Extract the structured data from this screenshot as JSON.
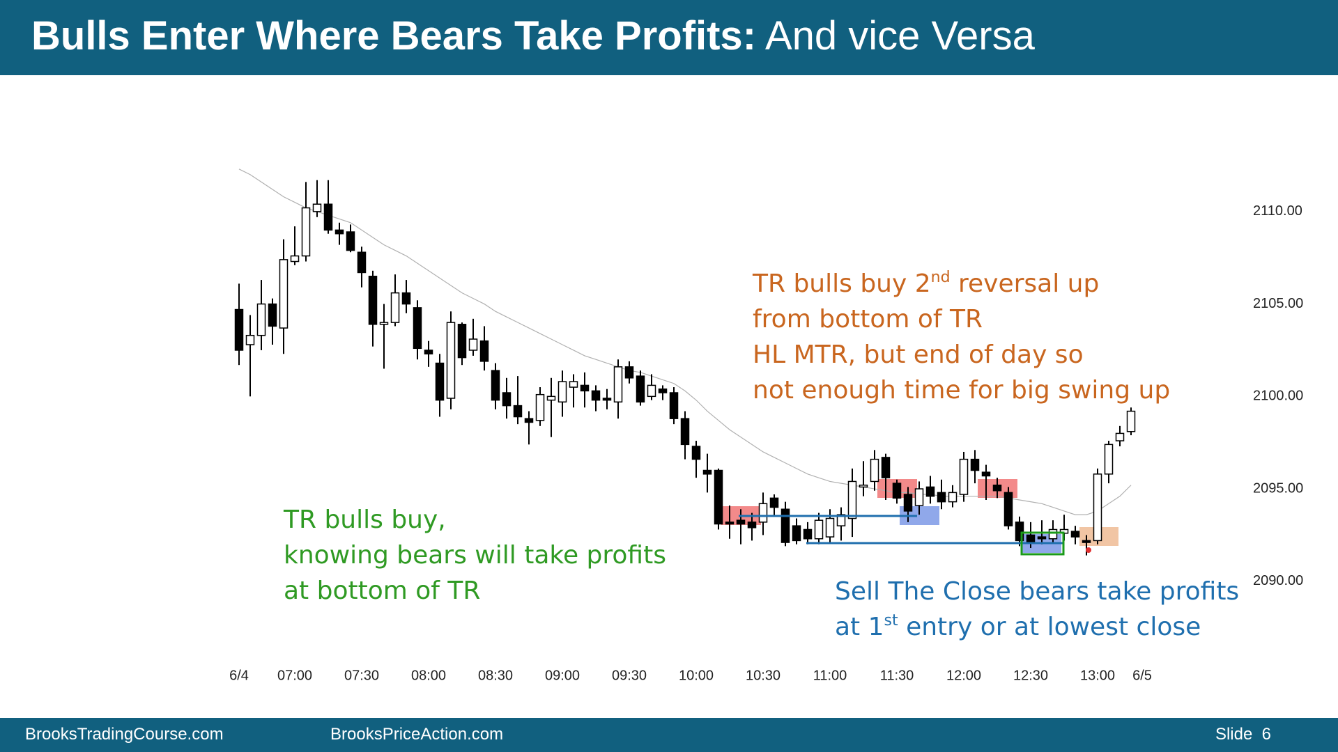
{
  "header": {
    "title_bold": "Bulls Enter Where Bears Take Profits:",
    "title_rest": "And vice Versa"
  },
  "footer": {
    "left": "BrooksTradingCourse.com",
    "center": "BrooksPriceAction.com",
    "slide": "Slide  6"
  },
  "chart_data": {
    "type": "candlestick",
    "categories": [
      "6/4",
      null,
      null,
      null,
      null,
      "07:00",
      null,
      null,
      null,
      null,
      null,
      "07:30",
      null,
      null,
      null,
      null,
      null,
      "08:00",
      null,
      null,
      null,
      null,
      null,
      "08:30",
      null,
      null,
      null,
      null,
      null,
      "09:00",
      null,
      null,
      null,
      null,
      null,
      "09:30",
      null,
      null,
      null,
      null,
      null,
      "10:00",
      null,
      null,
      null,
      null,
      null,
      "10:30",
      null,
      null,
      null,
      null,
      null,
      "11:00",
      null,
      null,
      null,
      null,
      null,
      "11:30",
      null,
      null,
      null,
      null,
      null,
      "12:00",
      null,
      null,
      null,
      null,
      null,
      "12:30",
      null,
      null,
      null,
      null,
      null,
      "13:00",
      null,
      null,
      null,
      "6/5"
    ],
    "open": [
      2104.7,
      2102.8,
      2103.3,
      2105.0,
      2103.7,
      2107.3,
      2107.6,
      2110.0,
      2110.4,
      2109.0,
      2108.9,
      2107.8,
      2106.5,
      2103.9,
      2104.0,
      2105.6,
      2104.8,
      2102.5,
      2101.8,
      2099.9,
      2103.9,
      2102.5,
      2103.0,
      2101.4,
      2100.2,
      2099.5,
      2098.8,
      2098.7,
      2099.8,
      2099.7,
      2100.5,
      2100.6,
      2100.3,
      2099.9,
      2099.7,
      2101.6,
      2101.1,
      2100.0,
      2100.4,
      2100.2,
      2098.8,
      2097.3,
      2096.0,
      2096.0,
      2093.2,
      2093.3,
      2093.2,
      2093.2,
      2094.5,
      2093.9,
      2093.0,
      2092.8,
      2092.3,
      2092.4,
      2093.0,
      2093.4,
      2095.1,
      2095.4,
      2096.7,
      2095.3,
      2094.7,
      2094.1,
      2095.1,
      2094.8,
      2094.3,
      2094.7,
      2096.6,
      2095.9,
      2095.2,
      2094.8,
      2093.2,
      2092.5,
      2092.4,
      2092.3,
      2092.6,
      2092.7,
      2092.2,
      2092.2,
      2095.8,
      2097.6,
      2098.1,
      null
    ],
    "high": [
      2106.1,
      2104.4,
      2106.3,
      2105.3,
      2108.5,
      2109.2,
      2111.6,
      2111.7,
      2111.7,
      2109.4,
      2109.3,
      2108.1,
      2106.8,
      2105.0,
      2106.6,
      2106.3,
      2105.2,
      2103.0,
      2102.3,
      2104.6,
      2104.0,
      2104.2,
      2103.8,
      2101.8,
      2101.0,
      2101.1,
      2099.2,
      2100.5,
      2101.0,
      2101.4,
      2101.2,
      2101.3,
      2100.6,
      2100.4,
      2102.0,
      2101.9,
      2101.4,
      2101.2,
      2100.6,
      2100.5,
      2099.2,
      2097.6,
      2096.9,
      2096.1,
      2094.1,
      2093.9,
      2093.7,
      2094.8,
      2094.7,
      2094.3,
      2093.4,
      2093.2,
      2093.7,
      2093.9,
      2094.0,
      2096.1,
      2096.5,
      2097.1,
      2096.9,
      2095.5,
      2095.1,
      2095.4,
      2095.7,
      2095.5,
      2095.2,
      2097.0,
      2097.1,
      2096.3,
      2095.6,
      2095.1,
      2093.5,
      2093.2,
      2093.3,
      2093.3,
      2093.6,
      2093.0,
      2092.5,
      2096.1,
      2097.6,
      2098.4,
      2099.4,
      null
    ],
    "low": [
      2101.7,
      2100.0,
      2102.5,
      2102.8,
      2102.3,
      2107.1,
      2107.3,
      2109.7,
      2108.8,
      2108.2,
      2107.8,
      2105.9,
      2102.7,
      2101.5,
      2103.8,
      2104.5,
      2102.0,
      2101.6,
      2098.9,
      2099.3,
      2101.7,
      2102.2,
      2101.4,
      2099.3,
      2098.8,
      2098.5,
      2097.4,
      2098.4,
      2097.8,
      2098.9,
      2099.4,
      2099.4,
      2099.2,
      2099.3,
      2098.8,
      2100.7,
      2099.5,
      2099.8,
      2099.8,
      2098.5,
      2096.6,
      2095.6,
      2094.8,
      2092.8,
      2092.3,
      2092.0,
      2092.2,
      2092.5,
      2093.5,
      2091.9,
      2092.0,
      2092.0,
      2092.0,
      2092.1,
      2092.2,
      2092.4,
      2094.6,
      2094.9,
      2094.4,
      2094.2,
      2093.2,
      2093.6,
      2094.2,
      2093.9,
      2094.0,
      2094.3,
      2095.3,
      2094.4,
      2094.5,
      2092.8,
      2091.9,
      2091.8,
      2092.0,
      2092.1,
      2092.2,
      2092.0,
      2091.4,
      2092.0,
      2095.3,
      2097.3,
      2097.9,
      null
    ],
    "close": [
      2102.5,
      2103.3,
      2105.0,
      2103.8,
      2107.4,
      2107.6,
      2110.2,
      2110.4,
      2109.0,
      2108.8,
      2107.9,
      2106.7,
      2103.9,
      2104.0,
      2105.6,
      2105.0,
      2102.6,
      2102.3,
      2099.8,
      2104.0,
      2102.1,
      2103.1,
      2101.9,
      2099.8,
      2099.5,
      2098.9,
      2098.6,
      2100.1,
      2100.0,
      2100.8,
      2100.8,
      2100.3,
      2099.8,
      2099.8,
      2101.6,
      2101.0,
      2099.7,
      2100.6,
      2100.2,
      2098.8,
      2097.4,
      2096.6,
      2095.8,
      2093.1,
      2093.1,
      2093.1,
      2092.9,
      2094.2,
      2094.0,
      2092.1,
      2092.2,
      2092.3,
      2093.3,
      2093.4,
      2093.6,
      2095.4,
      2095.2,
      2096.6,
      2095.6,
      2094.5,
      2093.8,
      2095.0,
      2094.6,
      2094.3,
      2094.8,
      2096.6,
      2096.0,
      2095.7,
      2094.9,
      2093.0,
      2092.2,
      2092.1,
      2092.3,
      2092.8,
      2092.8,
      2092.4,
      2092.1,
      2095.8,
      2097.4,
      2098.0,
      2099.2,
      null
    ],
    "moving_average": [
      2112.3,
      2112.0,
      2111.6,
      2111.2,
      2110.8,
      2110.5,
      2110.2,
      2110.0,
      2109.8,
      2109.6,
      2109.4,
      2109.0,
      2108.6,
      2108.2,
      2107.9,
      2107.6,
      2107.2,
      2106.8,
      2106.4,
      2106.0,
      2105.6,
      2105.3,
      2105.0,
      2104.6,
      2104.3,
      2104.0,
      2103.7,
      2103.4,
      2103.1,
      2102.8,
      2102.5,
      2102.2,
      2102.0,
      2101.8,
      2101.6,
      2101.4,
      2101.3,
      2101.1,
      2100.9,
      2100.7,
      2100.3,
      2099.8,
      2099.2,
      2098.7,
      2098.2,
      2097.8,
      2097.4,
      2097.0,
      2096.7,
      2096.4,
      2096.1,
      2095.8,
      2095.6,
      2095.4,
      2095.3,
      2095.2,
      2095.1,
      2095.0,
      2094.9,
      2094.8,
      2094.8,
      2094.7,
      2094.7,
      2094.6,
      2094.6,
      2094.6,
      2094.6,
      2094.6,
      2094.6,
      2094.5,
      2094.4,
      2094.3,
      2094.2,
      2094.0,
      2093.8,
      2093.6,
      2093.6,
      2093.8,
      2094.2,
      2094.6,
      2095.2,
      null
    ],
    "ylim": [
      2086,
      2117
    ],
    "yticks": [
      {
        "value": 2110,
        "label": "2110.00"
      },
      {
        "value": 2105,
        "label": "2105.00"
      },
      {
        "value": 2100,
        "label": "2100.00"
      },
      {
        "value": 2095,
        "label": "2095.00"
      },
      {
        "value": 2090,
        "label": "2090.00"
      }
    ],
    "bull_color": "#ffffff",
    "bear_color": "#000000",
    "ma_color": "#b0b0b0",
    "annotations": [
      {
        "color": "#c9661f",
        "lines": [
          {
            "before": "TR bulls buy 2",
            "sup": "nd",
            "after": " reversal up"
          },
          "from bottom of TR",
          "HL MTR, but end of day so",
          "not enough time for big swing up"
        ]
      },
      {
        "color": "#2f9a23",
        "lines": [
          "TR bulls buy,",
          "knowing bears will take profits",
          "at bottom of TR"
        ]
      },
      {
        "color": "#1f6fae",
        "lines": [
          "Sell The Close bears take profits",
          {
            "before": "at 1",
            "sup": "st",
            "after": " entry or at lowest close"
          }
        ]
      }
    ]
  }
}
